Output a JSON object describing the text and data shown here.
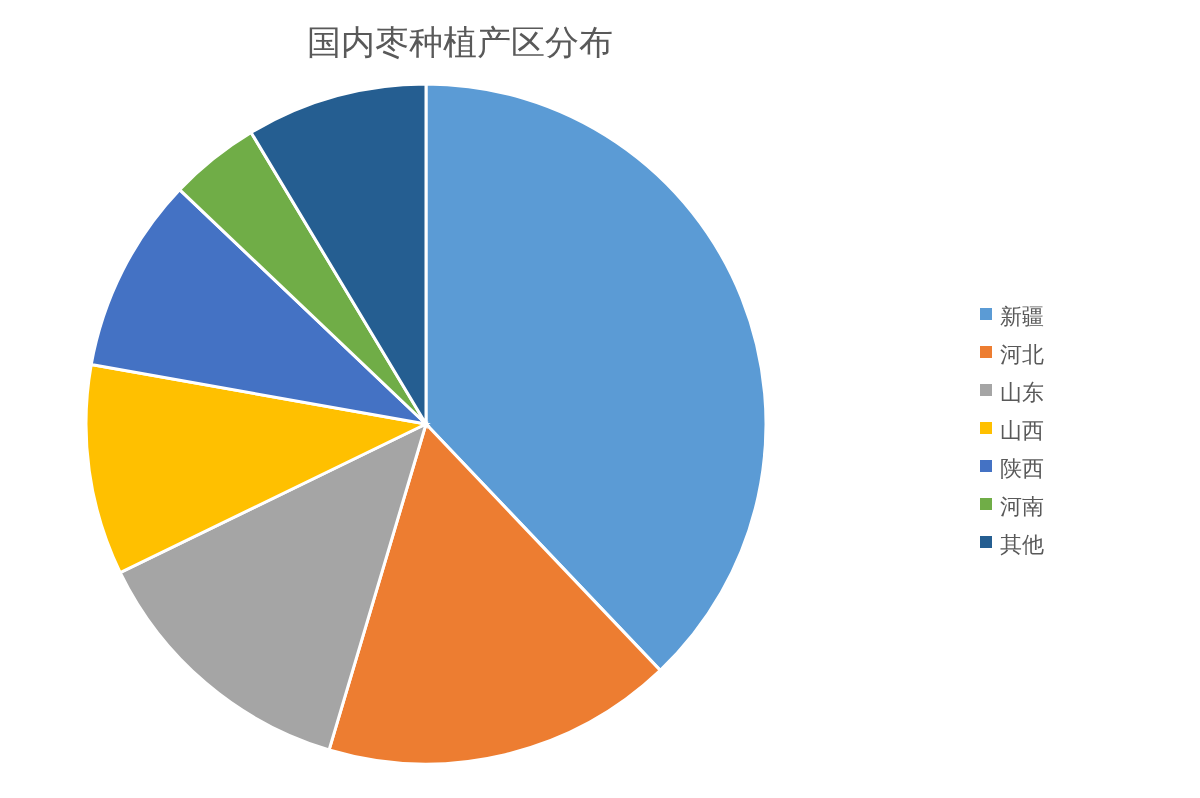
{
  "chart_data": {
    "type": "pie",
    "title": "国内枣种植产区分布",
    "categories": [
      "新疆",
      "河北",
      "山东",
      "山西",
      "陕西",
      "河南",
      "其他"
    ],
    "values": [
      37.9,
      16.7,
      13.2,
      10.0,
      9.3,
      4.3,
      8.6
    ],
    "colors": [
      "#5b9bd5",
      "#ed7d31",
      "#a5a5a5",
      "#ffc000",
      "#4472c4",
      "#70ad47",
      "#255e91"
    ],
    "legend": "right"
  }
}
